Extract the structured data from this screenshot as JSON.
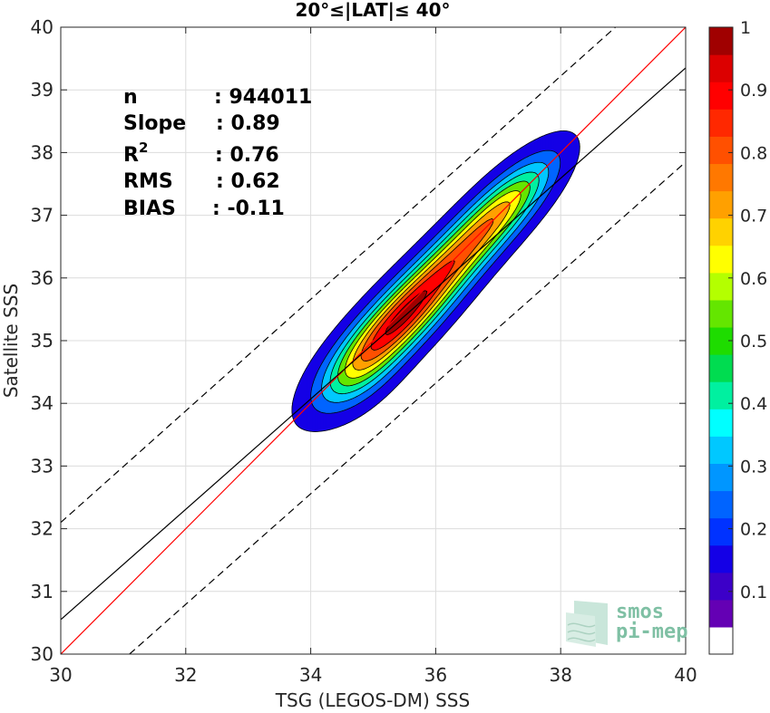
{
  "chart_data": {
    "type": "contour",
    "title": "20°≤|LAT|≤ 40°",
    "xlabel": "TSG (LEGOS-DM) SSS",
    "ylabel": "Satellite SSS",
    "xlim": [
      30,
      40
    ],
    "ylim": [
      30,
      40
    ],
    "xticks": [
      30,
      32,
      34,
      36,
      38,
      40
    ],
    "yticks": [
      30,
      31,
      32,
      33,
      34,
      35,
      36,
      37,
      38,
      39,
      40
    ],
    "grid": true,
    "stats": [
      {
        "label": "n",
        "sep": ":",
        "value": "944011"
      },
      {
        "label": "Slope",
        "sep": ":",
        "value": "0.89"
      },
      {
        "label": "R",
        "sup": "2",
        "sep": ":",
        "value": "0.76"
      },
      {
        "label": "RMS",
        "sep": ":",
        "value": "0.62"
      },
      {
        "label": "BIAS",
        "sep": ":",
        "value": "-0.11"
      }
    ],
    "lines": [
      {
        "name": "one-to-one",
        "color": "#ff0000",
        "dash": false,
        "points": [
          [
            30,
            30
          ],
          [
            40,
            40
          ]
        ]
      },
      {
        "name": "regression",
        "color": "#000000",
        "dash": false,
        "points": [
          [
            30,
            30.55
          ],
          [
            40,
            39.35
          ]
        ]
      },
      {
        "name": "upper-bound",
        "color": "#000000",
        "dash": true,
        "points": [
          [
            30,
            32.1
          ],
          [
            40,
            41.0
          ]
        ]
      },
      {
        "name": "lower-bound",
        "color": "#000000",
        "dash": true,
        "points": [
          [
            31.1,
            30
          ],
          [
            40,
            37.85
          ]
        ]
      }
    ],
    "density_peaks": [
      {
        "x": 35.35,
        "y": 35.25,
        "peak": 1.0,
        "sigma_major": 0.9,
        "sigma_minor": 0.28
      },
      {
        "x": 36.45,
        "y": 36.45,
        "peak": 0.66,
        "sigma_major": 0.9,
        "sigma_minor": 0.26
      },
      {
        "x": 37.2,
        "y": 37.25,
        "peak": 0.42,
        "sigma_major": 0.7,
        "sigma_minor": 0.25
      },
      {
        "x": 34.75,
        "y": 34.45,
        "peak": 0.2,
        "sigma_major": 0.55,
        "sigma_minor": 0.3
      }
    ],
    "contour_levels": [
      0.05,
      0.15,
      0.25,
      0.35,
      0.45,
      0.55,
      0.65,
      0.75,
      0.85,
      0.95
    ],
    "colorbar": {
      "min": 0,
      "max": 1,
      "ticks": [
        0.1,
        0.2,
        0.3,
        0.4,
        0.5,
        0.6,
        0.7,
        0.8,
        0.9,
        1
      ],
      "tick_labels": [
        "0.1",
        "0.2",
        "0.3",
        "0.4",
        "0.5",
        "0.6",
        "0.7",
        "0.8",
        "0.9",
        "1"
      ],
      "colors": [
        "#ffffff",
        "#6400b4",
        "#3c00c8",
        "#1400e6",
        "#0032ff",
        "#0064ff",
        "#0096ff",
        "#00c8ff",
        "#00ffff",
        "#00f0a0",
        "#00dc50",
        "#1edc00",
        "#64e600",
        "#b4ff00",
        "#ffff00",
        "#ffd200",
        "#ffa000",
        "#ff7800",
        "#ff5000",
        "#ff2800",
        "#ff0000",
        "#dc0000",
        "#a00000"
      ]
    }
  },
  "watermark": {
    "line1": "smos",
    "line2": "pi-mep"
  }
}
